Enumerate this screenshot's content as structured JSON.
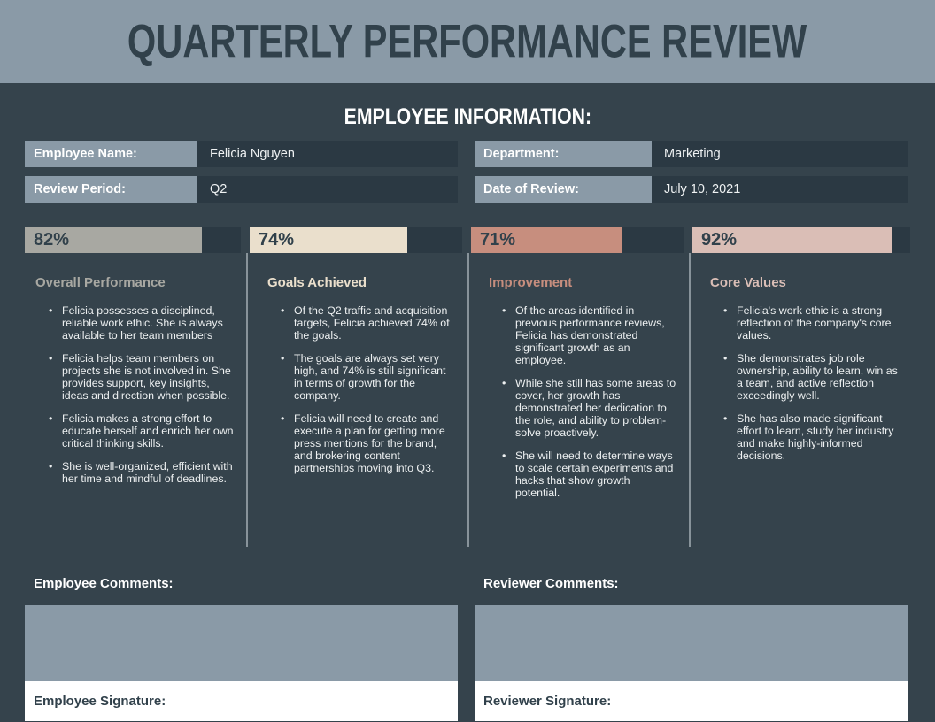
{
  "header": {
    "title": "QUARTERLY PERFORMANCE REVIEW"
  },
  "employee_info": {
    "heading": "EMPLOYEE INFORMATION:",
    "fields": [
      {
        "label": "Employee Name:",
        "value": "Felicia Nguyen"
      },
      {
        "label": "Department:",
        "value": "Marketing"
      },
      {
        "label": "Review Period:",
        "value": "Q2"
      },
      {
        "label": "Date of Review:",
        "value": "July 10, 2021"
      }
    ]
  },
  "categories": [
    {
      "title": "Overall Performance",
      "score": "82%",
      "percent": 82,
      "color": "#A8A8A2",
      "bullets": [
        "Felicia possesses a disciplined, reliable work ethic. She is always available to her team members",
        "Felicia helps team members on projects she is not involved in. She provides support, key insights, ideas and direction when possible.",
        "Felicia makes a strong effort to educate herself and enrich her own critical thinking skills.",
        "She is well-organized, efficient with her time and mindful of deadlines."
      ]
    },
    {
      "title": "Goals Achieved",
      "score": "74%",
      "percent": 74,
      "color": "#EADFCC",
      "bullets": [
        "Of the Q2 traffic and acquisition targets, Felicia achieved 74% of the goals.",
        "The goals are always set very high, and 74% is still significant in terms of growth for the company.",
        "Felicia will need to create and execute a plan for getting more press mentions for the brand, and brokering content partnerships moving into Q3."
      ]
    },
    {
      "title": "Improvement",
      "score": "71%",
      "percent": 71,
      "color": "#C78E7E",
      "bullets": [
        "Of the areas identified in previous performance reviews, Felicia has demonstrated significant growth as an employee.",
        "While she still has some areas to cover, her growth has demonstrated her dedication to the role, and ability to problem-solve proactively.",
        "She will need to determine ways to scale certain experiments and hacks that show growth potential."
      ]
    },
    {
      "title": "Core Values",
      "score": "92%",
      "percent": 92,
      "color": "#DABEB6",
      "bullets": [
        "Felicia's work ethic is a strong reflection of the company's core values.",
        "She demonstrates job role ownership, ability to learn, win as a team, and active reflection exceedingly well.",
        "She has also made significant effort to learn, study her industry and make highly-informed decisions."
      ]
    }
  ],
  "comments": {
    "employee": {
      "comments_label": "Employee Comments:",
      "signature_label": "Employee Signature:"
    },
    "reviewer": {
      "comments_label": "Reviewer Comments:",
      "signature_label": "Reviewer Signature:"
    }
  },
  "colors": {
    "page_background": "#35434C",
    "panel_blue_gray": "#8A9AA7",
    "cell_dark": "#2B3943",
    "heading_dark": "#31414B",
    "body_text": "#EDF0F1",
    "accent_overall": "#A8A8A2",
    "accent_goals": "#EADFCC",
    "accent_improvement": "#C78E7E",
    "accent_core_values": "#DABEB6"
  }
}
